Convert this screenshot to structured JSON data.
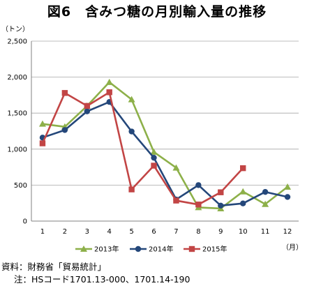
{
  "title": "図6　含みつ糖の月別輸入量の推移",
  "chart_data": {
    "type": "line",
    "ylabel": "（トン）",
    "xlabel": "（月）",
    "ylim": [
      0,
      2500
    ],
    "yticks": [
      0,
      500,
      1000,
      1500,
      2000,
      2500
    ],
    "ytick_labels": [
      "0",
      "500",
      "1,000",
      "1,500",
      "2,000",
      "2,500"
    ],
    "categories": [
      "1",
      "2",
      "3",
      "4",
      "5",
      "6",
      "7",
      "8",
      "9",
      "10",
      "11",
      "12"
    ],
    "grid": true,
    "legend_position": "bottom",
    "series": [
      {
        "name": "2013年",
        "color": "#8db049",
        "marker": "triangle",
        "values": [
          1350,
          1310,
          1600,
          1930,
          1690,
          960,
          740,
          190,
          175,
          410,
          235,
          475
        ]
      },
      {
        "name": "2014年",
        "color": "#24477a",
        "marker": "circle",
        "values": [
          1160,
          1265,
          1525,
          1655,
          1245,
          880,
          300,
          500,
          215,
          245,
          405,
          335
        ]
      },
      {
        "name": "2015年",
        "color": "#c24545",
        "marker": "square",
        "values": [
          1080,
          1780,
          1600,
          1790,
          440,
          770,
          285,
          230,
          400,
          735,
          null,
          null
        ]
      }
    ]
  },
  "notes": {
    "source": "資料：財務省「貿易統計」",
    "note": "注：HSコード1701.13-000、1701.14-190"
  }
}
